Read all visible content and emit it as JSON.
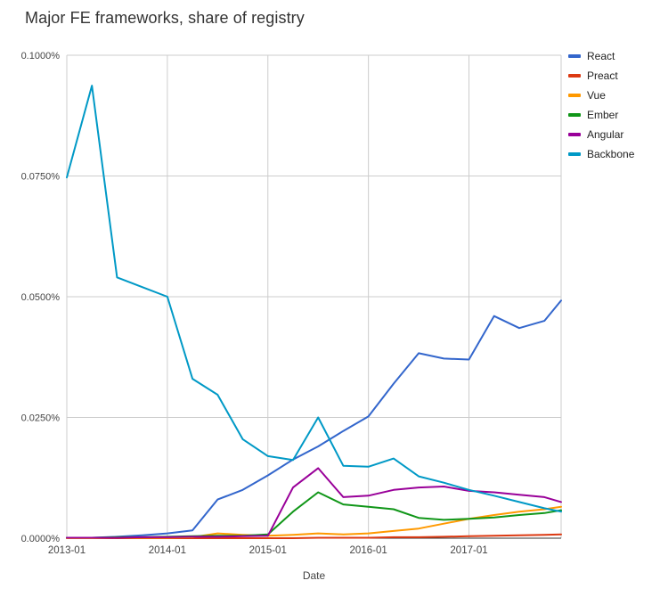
{
  "title": "Major FE frameworks, share of registry",
  "xaxis_title": "Date",
  "chart_data": {
    "type": "line",
    "title": "Major FE frameworks, share of registry",
    "xlabel": "Date",
    "ylabel": "",
    "grid": true,
    "legend_position": "right",
    "gridline_color": "#cccccc",
    "baseline_color": "#333333",
    "tick_color": "#444444",
    "ylim": [
      0,
      0.1
    ],
    "yticks": [
      {
        "value": 0.0,
        "label": "0.0000%"
      },
      {
        "value": 0.025,
        "label": "0.0250%"
      },
      {
        "value": 0.05,
        "label": "0.0500%"
      },
      {
        "value": 0.075,
        "label": "0.0750%"
      },
      {
        "value": 0.1,
        "label": "0.1000%"
      }
    ],
    "xticks": [
      "2013-01",
      "2014-01",
      "2015-01",
      "2016-01",
      "2017-01"
    ],
    "categories": [
      "2013-01",
      "2013-04",
      "2013-07",
      "2013-10",
      "2014-01",
      "2014-04",
      "2014-07",
      "2014-10",
      "2015-01",
      "2015-04",
      "2015-07",
      "2015-10",
      "2016-01",
      "2016-04",
      "2016-07",
      "2016-10",
      "2017-01",
      "2017-04",
      "2017-07",
      "2017-10",
      "2017-12"
    ],
    "series": [
      {
        "name": "React",
        "color": "#3366cc",
        "values": [
          0.0001,
          0.0001,
          0.0003,
          0.0006,
          0.001,
          0.0016,
          0.008,
          0.01,
          0.013,
          0.0163,
          0.019,
          0.0222,
          0.0252,
          0.032,
          0.0383,
          0.0372,
          0.037,
          0.046,
          0.0435,
          0.045,
          0.0492
        ]
      },
      {
        "name": "Preact",
        "color": "#dc3912",
        "values": [
          0.0,
          0.0,
          0.0,
          0.0,
          0.0,
          0.0,
          0.0,
          0.0,
          0.0,
          0.0,
          0.0001,
          0.0001,
          0.0001,
          0.0002,
          0.0002,
          0.0003,
          0.0004,
          0.0005,
          0.0006,
          0.0007,
          0.0008
        ]
      },
      {
        "name": "Vue",
        "color": "#ff9900",
        "values": [
          0.0,
          0.0,
          0.0001,
          0.0001,
          0.0001,
          0.0002,
          0.001,
          0.0007,
          0.0005,
          0.0007,
          0.001,
          0.0008,
          0.001,
          0.0015,
          0.002,
          0.003,
          0.004,
          0.0048,
          0.0055,
          0.006,
          0.0065
        ]
      },
      {
        "name": "Ember",
        "color": "#109618",
        "values": [
          0.0001,
          0.0001,
          0.0002,
          0.0002,
          0.0003,
          0.0004,
          0.0005,
          0.0005,
          0.0008,
          0.0055,
          0.0095,
          0.007,
          0.0065,
          0.006,
          0.0042,
          0.0038,
          0.004,
          0.0043,
          0.0048,
          0.0052,
          0.0058
        ]
      },
      {
        "name": "Angular",
        "color": "#990099",
        "values": [
          0.0001,
          0.0001,
          0.0001,
          0.0002,
          0.0002,
          0.0003,
          0.0003,
          0.0004,
          0.0005,
          0.0105,
          0.0145,
          0.0085,
          0.0088,
          0.01,
          0.0105,
          0.0107,
          0.0098,
          0.0095,
          0.009,
          0.0085,
          0.0075
        ]
      },
      {
        "name": "Backbone",
        "color": "#0099c6",
        "values": [
          0.0747,
          0.0937,
          0.054,
          0.052,
          0.05,
          0.033,
          0.0297,
          0.0205,
          0.017,
          0.0162,
          0.025,
          0.015,
          0.0148,
          0.0165,
          0.0128,
          0.0115,
          0.01,
          0.0088,
          0.0075,
          0.0062,
          0.0055
        ]
      }
    ]
  }
}
